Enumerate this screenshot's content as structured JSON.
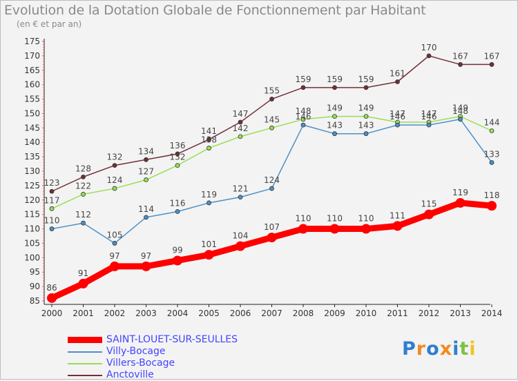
{
  "header": {
    "title": "Evolution de la Dotation Globale de Fonctionnement par Habitant",
    "subtitle": "(en € et par an)"
  },
  "chart_data": {
    "type": "line",
    "title": "Evolution de la Dotation Globale de Fonctionnement par Habitant",
    "subtitle": "(en € et par an)",
    "x": [
      "2000",
      "2001",
      "2002",
      "2003",
      "2004",
      "2005",
      "2006",
      "2007",
      "2008",
      "2009",
      "2010",
      "2011",
      "2012",
      "2013",
      "2014"
    ],
    "ylim": [
      85,
      175
    ],
    "yticks": [
      85,
      90,
      95,
      100,
      105,
      110,
      115,
      120,
      125,
      130,
      135,
      140,
      145,
      150,
      155,
      160,
      165,
      170,
      175
    ],
    "grid": false,
    "series": [
      {
        "name": "Anctoville",
        "color": "#722f37",
        "values": [
          123,
          128,
          132,
          134,
          136,
          141,
          147,
          155,
          159,
          159,
          159,
          161,
          170,
          167,
          167
        ],
        "labels": [
          "123",
          "128",
          "132",
          "134",
          "136",
          "141",
          "147",
          "155",
          "159",
          "159",
          "159",
          "161",
          "170",
          "167",
          "167"
        ]
      },
      {
        "name": "Villers-Bocage",
        "color": "#99dd55",
        "values": [
          117,
          122,
          124,
          127,
          132,
          138,
          142,
          145,
          148,
          149,
          149,
          147,
          147,
          149,
          144
        ],
        "labels": [
          "117",
          "122",
          "124",
          "127",
          "132",
          "138",
          "142",
          "145",
          "148",
          "149",
          "149",
          "147",
          "147",
          "149",
          "144"
        ]
      },
      {
        "name": "Villy-Bocage",
        "color": "#4a90c8",
        "values": [
          110,
          112,
          105,
          114,
          116,
          119,
          121,
          124,
          146,
          143,
          143,
          146,
          146,
          148,
          133
        ],
        "labels": [
          "110",
          "112",
          "105",
          "114",
          "116",
          "119",
          "121",
          "124",
          "146",
          "143",
          "143",
          "146",
          "146",
          "148",
          "133"
        ]
      },
      {
        "name": "SAINT-LOUET-SUR-SEULLES",
        "color": "#ff0000",
        "values": [
          86,
          91,
          97,
          97,
          99,
          101,
          104,
          107,
          110,
          110,
          110,
          111,
          115,
          119,
          118
        ],
        "labels": [
          "86",
          "91",
          "97",
          "97",
          "99",
          "101",
          "104",
          "107",
          "110",
          "110",
          "110",
          "111",
          "115",
          "119",
          "118"
        ]
      }
    ],
    "legend": [
      {
        "label": "SAINT-LOUET-SUR-SEULLES",
        "color": "#ff0000",
        "text_color": "#4444ff"
      },
      {
        "label": "Villy-Bocage",
        "color": "#4a90c8",
        "text_color": "#4444ff"
      },
      {
        "label": "Villers-Bocage",
        "color": "#99dd55",
        "text_color": "#4444ff"
      },
      {
        "label": "Anctoville",
        "color": "#722f37",
        "text_color": "#4444ff"
      }
    ],
    "legend_position": "bottom-left"
  },
  "brand": {
    "logo_letters": [
      "P",
      "r",
      "o",
      "x",
      "i",
      "t",
      "i"
    ],
    "logo_colors": [
      "#2e7fd1",
      "#f28a1f",
      "#2e7fd1",
      "#f28a1f",
      "#2e7fd1",
      "#7cc242",
      "#f2c21f"
    ]
  }
}
